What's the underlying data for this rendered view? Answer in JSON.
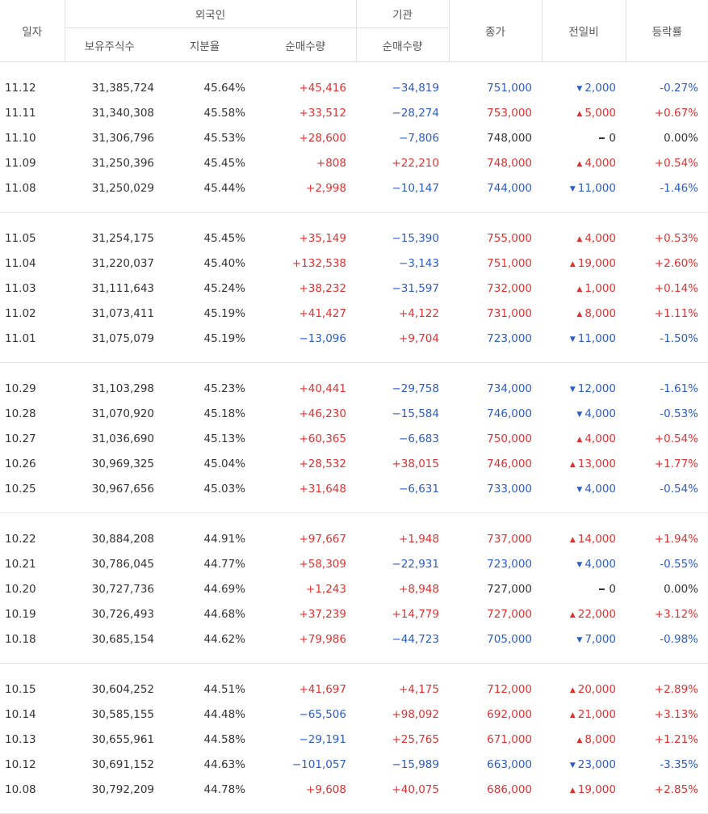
{
  "header": {
    "date": "일자",
    "foreigner": "외국인",
    "institution": "기관",
    "close": "종가",
    "change": "전일비",
    "rate": "등락률",
    "holdings": "보유주식수",
    "share": "지분율",
    "net_foreign": "순매수량",
    "net_inst": "순매수량"
  },
  "groups": [
    [
      {
        "date": "11.12",
        "holdings": "31,385,724",
        "share": "45.64%",
        "foreign": "+45,416",
        "fc": "red",
        "inst": "−34,819",
        "ic": "blue",
        "close": "751,000",
        "cc": "blue",
        "dir": "down",
        "change": "2,000",
        "rate": "-0.27%",
        "rc": "blue"
      },
      {
        "date": "11.11",
        "holdings": "31,340,308",
        "share": "45.58%",
        "foreign": "+33,512",
        "fc": "red",
        "inst": "−28,274",
        "ic": "blue",
        "close": "753,000",
        "cc": "red",
        "dir": "up",
        "change": "5,000",
        "rate": "+0.67%",
        "rc": "red"
      },
      {
        "date": "11.10",
        "holdings": "31,306,796",
        "share": "45.53%",
        "foreign": "+28,600",
        "fc": "red",
        "inst": "−7,806",
        "ic": "blue",
        "close": "748,000",
        "cc": "black",
        "dir": "flat",
        "change": "0",
        "rate": "0.00%",
        "rc": "black"
      },
      {
        "date": "11.09",
        "holdings": "31,250,396",
        "share": "45.45%",
        "foreign": "+808",
        "fc": "red",
        "inst": "+22,210",
        "ic": "red",
        "close": "748,000",
        "cc": "red",
        "dir": "up",
        "change": "4,000",
        "rate": "+0.54%",
        "rc": "red"
      },
      {
        "date": "11.08",
        "holdings": "31,250,029",
        "share": "45.44%",
        "foreign": "+2,998",
        "fc": "red",
        "inst": "−10,147",
        "ic": "blue",
        "close": "744,000",
        "cc": "blue",
        "dir": "down",
        "change": "11,000",
        "rate": "-1.46%",
        "rc": "blue"
      }
    ],
    [
      {
        "date": "11.05",
        "holdings": "31,254,175",
        "share": "45.45%",
        "foreign": "+35,149",
        "fc": "red",
        "inst": "−15,390",
        "ic": "blue",
        "close": "755,000",
        "cc": "red",
        "dir": "up",
        "change": "4,000",
        "rate": "+0.53%",
        "rc": "red"
      },
      {
        "date": "11.04",
        "holdings": "31,220,037",
        "share": "45.40%",
        "foreign": "+132,538",
        "fc": "red",
        "inst": "−3,143",
        "ic": "blue",
        "close": "751,000",
        "cc": "red",
        "dir": "up",
        "change": "19,000",
        "rate": "+2.60%",
        "rc": "red"
      },
      {
        "date": "11.03",
        "holdings": "31,111,643",
        "share": "45.24%",
        "foreign": "+38,232",
        "fc": "red",
        "inst": "−31,597",
        "ic": "blue",
        "close": "732,000",
        "cc": "red",
        "dir": "up",
        "change": "1,000",
        "rate": "+0.14%",
        "rc": "red"
      },
      {
        "date": "11.02",
        "holdings": "31,073,411",
        "share": "45.19%",
        "foreign": "+41,427",
        "fc": "red",
        "inst": "+4,122",
        "ic": "red",
        "close": "731,000",
        "cc": "red",
        "dir": "up",
        "change": "8,000",
        "rate": "+1.11%",
        "rc": "red"
      },
      {
        "date": "11.01",
        "holdings": "31,075,079",
        "share": "45.19%",
        "foreign": "−13,096",
        "fc": "blue",
        "inst": "+9,704",
        "ic": "red",
        "close": "723,000",
        "cc": "blue",
        "dir": "down",
        "change": "11,000",
        "rate": "-1.50%",
        "rc": "blue"
      }
    ],
    [
      {
        "date": "10.29",
        "holdings": "31,103,298",
        "share": "45.23%",
        "foreign": "+40,441",
        "fc": "red",
        "inst": "−29,758",
        "ic": "blue",
        "close": "734,000",
        "cc": "blue",
        "dir": "down",
        "change": "12,000",
        "rate": "-1.61%",
        "rc": "blue"
      },
      {
        "date": "10.28",
        "holdings": "31,070,920",
        "share": "45.18%",
        "foreign": "+46,230",
        "fc": "red",
        "inst": "−15,584",
        "ic": "blue",
        "close": "746,000",
        "cc": "blue",
        "dir": "down",
        "change": "4,000",
        "rate": "-0.53%",
        "rc": "blue"
      },
      {
        "date": "10.27",
        "holdings": "31,036,690",
        "share": "45.13%",
        "foreign": "+60,365",
        "fc": "red",
        "inst": "−6,683",
        "ic": "blue",
        "close": "750,000",
        "cc": "red",
        "dir": "up",
        "change": "4,000",
        "rate": "+0.54%",
        "rc": "red"
      },
      {
        "date": "10.26",
        "holdings": "30,969,325",
        "share": "45.04%",
        "foreign": "+28,532",
        "fc": "red",
        "inst": "+38,015",
        "ic": "red",
        "close": "746,000",
        "cc": "red",
        "dir": "up",
        "change": "13,000",
        "rate": "+1.77%",
        "rc": "red"
      },
      {
        "date": "10.25",
        "holdings": "30,967,656",
        "share": "45.03%",
        "foreign": "+31,648",
        "fc": "red",
        "inst": "−6,631",
        "ic": "blue",
        "close": "733,000",
        "cc": "blue",
        "dir": "down",
        "change": "4,000",
        "rate": "-0.54%",
        "rc": "blue"
      }
    ],
    [
      {
        "date": "10.22",
        "holdings": "30,884,208",
        "share": "44.91%",
        "foreign": "+97,667",
        "fc": "red",
        "inst": "+1,948",
        "ic": "red",
        "close": "737,000",
        "cc": "red",
        "dir": "up",
        "change": "14,000",
        "rate": "+1.94%",
        "rc": "red"
      },
      {
        "date": "10.21",
        "holdings": "30,786,045",
        "share": "44.77%",
        "foreign": "+58,309",
        "fc": "red",
        "inst": "−22,931",
        "ic": "blue",
        "close": "723,000",
        "cc": "blue",
        "dir": "down",
        "change": "4,000",
        "rate": "-0.55%",
        "rc": "blue"
      },
      {
        "date": "10.20",
        "holdings": "30,727,736",
        "share": "44.69%",
        "foreign": "+1,243",
        "fc": "red",
        "inst": "+8,948",
        "ic": "red",
        "close": "727,000",
        "cc": "black",
        "dir": "flat",
        "change": "0",
        "rate": "0.00%",
        "rc": "black"
      },
      {
        "date": "10.19",
        "holdings": "30,726,493",
        "share": "44.68%",
        "foreign": "+37,239",
        "fc": "red",
        "inst": "+14,779",
        "ic": "red",
        "close": "727,000",
        "cc": "red",
        "dir": "up",
        "change": "22,000",
        "rate": "+3.12%",
        "rc": "red"
      },
      {
        "date": "10.18",
        "holdings": "30,685,154",
        "share": "44.62%",
        "foreign": "+79,986",
        "fc": "red",
        "inst": "−44,723",
        "ic": "blue",
        "close": "705,000",
        "cc": "blue",
        "dir": "down",
        "change": "7,000",
        "rate": "-0.98%",
        "rc": "blue"
      }
    ],
    [
      {
        "date": "10.15",
        "holdings": "30,604,252",
        "share": "44.51%",
        "foreign": "+41,697",
        "fc": "red",
        "inst": "+4,175",
        "ic": "red",
        "close": "712,000",
        "cc": "red",
        "dir": "up",
        "change": "20,000",
        "rate": "+2.89%",
        "rc": "red"
      },
      {
        "date": "10.14",
        "holdings": "30,585,155",
        "share": "44.48%",
        "foreign": "−65,506",
        "fc": "blue",
        "inst": "+98,092",
        "ic": "red",
        "close": "692,000",
        "cc": "red",
        "dir": "up",
        "change": "21,000",
        "rate": "+3.13%",
        "rc": "red"
      },
      {
        "date": "10.13",
        "holdings": "30,655,961",
        "share": "44.58%",
        "foreign": "−29,191",
        "fc": "blue",
        "inst": "+25,765",
        "ic": "red",
        "close": "671,000",
        "cc": "red",
        "dir": "up",
        "change": "8,000",
        "rate": "+1.21%",
        "rc": "red"
      },
      {
        "date": "10.12",
        "holdings": "30,691,152",
        "share": "44.63%",
        "foreign": "−101,057",
        "fc": "blue",
        "inst": "−15,989",
        "ic": "blue",
        "close": "663,000",
        "cc": "blue",
        "dir": "down",
        "change": "23,000",
        "rate": "-3.35%",
        "rc": "blue"
      },
      {
        "date": "10.08",
        "holdings": "30,792,209",
        "share": "44.78%",
        "foreign": "+9,608",
        "fc": "red",
        "inst": "+40,075",
        "ic": "red",
        "close": "686,000",
        "cc": "red",
        "dir": "up",
        "change": "19,000",
        "rate": "+2.85%",
        "rc": "red"
      }
    ]
  ]
}
